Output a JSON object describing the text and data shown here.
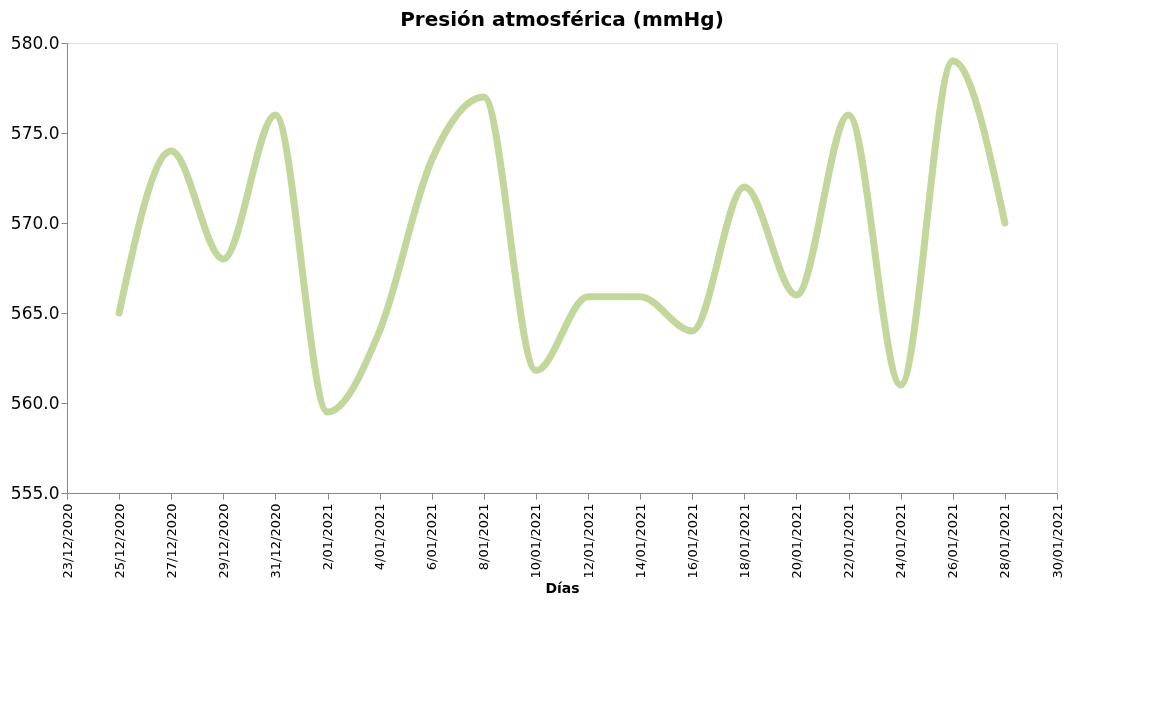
{
  "chart_data": {
    "type": "line",
    "title": "Presión atmosférica (mmHg)",
    "xlabel": "Días",
    "x": [
      "2020-12-25",
      "2020-12-27",
      "2020-12-29",
      "2020-12-31",
      "2021-01-02",
      "2021-01-04",
      "2021-01-06",
      "2021-01-08",
      "2021-01-10",
      "2021-01-12",
      "2021-01-14",
      "2021-01-16",
      "2021-01-18",
      "2021-01-20",
      "2021-01-22",
      "2021-01-24",
      "2021-01-26",
      "2021-01-28"
    ],
    "series": [
      {
        "color": "#c3d69b",
        "values": [
          565.0,
          574.0,
          568.0,
          576.0,
          559.5,
          564.0,
          573.5,
          577.0,
          561.8,
          565.9,
          565.9,
          564.0,
          572.0,
          566.0,
          576.0,
          561.0,
          579.0,
          570.0
        ]
      }
    ],
    "xlim": [
      "2020-12-23",
      "2021-01-30"
    ],
    "xticks": [
      {
        "value": "2020-12-23",
        "label": "23/12/2020"
      },
      {
        "value": "2020-12-25",
        "label": "25/12/2020"
      },
      {
        "value": "2020-12-27",
        "label": "27/12/2020"
      },
      {
        "value": "2020-12-29",
        "label": "29/12/2020"
      },
      {
        "value": "2020-12-31",
        "label": "31/12/2020"
      },
      {
        "value": "2021-01-02",
        "label": "2/01/2021"
      },
      {
        "value": "2021-01-04",
        "label": "4/01/2021"
      },
      {
        "value": "2021-01-06",
        "label": "6/01/2021"
      },
      {
        "value": "2021-01-08",
        "label": "8/01/2021"
      },
      {
        "value": "2021-01-10",
        "label": "10/01/2021"
      },
      {
        "value": "2021-01-12",
        "label": "12/01/2021"
      },
      {
        "value": "2021-01-14",
        "label": "14/01/2021"
      },
      {
        "value": "2021-01-16",
        "label": "16/01/2021"
      },
      {
        "value": "2021-01-18",
        "label": "18/01/2021"
      },
      {
        "value": "2021-01-20",
        "label": "20/01/2021"
      },
      {
        "value": "2021-01-22",
        "label": "22/01/2021"
      },
      {
        "value": "2021-01-24",
        "label": "24/01/2021"
      },
      {
        "value": "2021-01-26",
        "label": "26/01/2021"
      },
      {
        "value": "2021-01-28",
        "label": "28/01/2021"
      },
      {
        "value": "2021-01-30",
        "label": "30/01/2021"
      }
    ],
    "ylim": [
      555,
      580
    ],
    "yticks": [
      {
        "value": 555,
        "label": "555.0"
      },
      {
        "value": 560,
        "label": "560.0"
      },
      {
        "value": 565,
        "label": "565.0"
      },
      {
        "value": 570,
        "label": "570.0"
      },
      {
        "value": 575,
        "label": "575.0"
      },
      {
        "value": 580,
        "label": "580.0"
      }
    ],
    "grid": false,
    "marker": "none",
    "line_style": "solid"
  }
}
